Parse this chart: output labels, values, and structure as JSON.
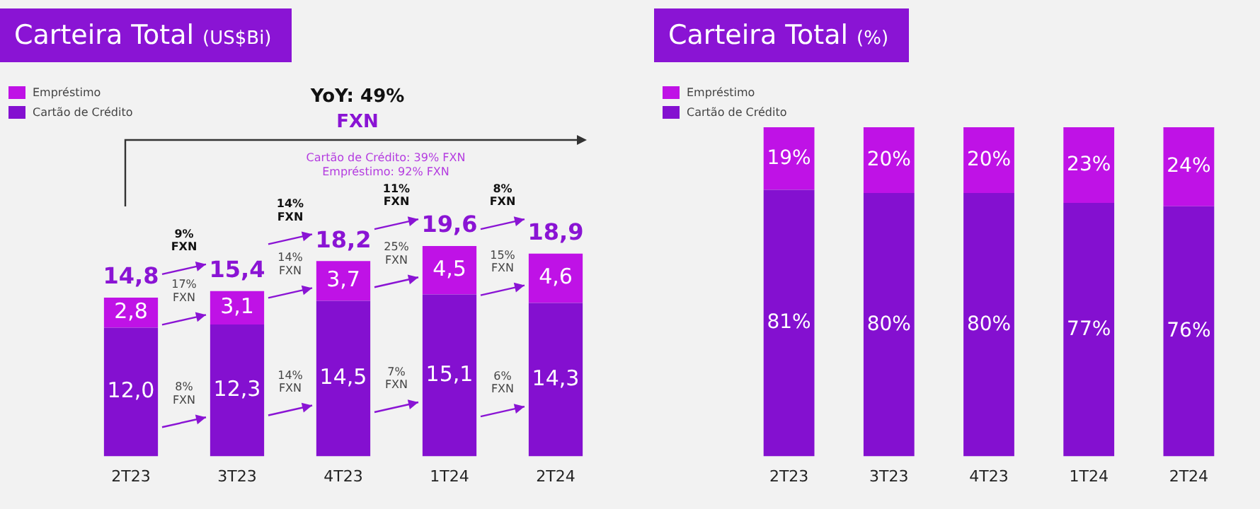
{
  "chart_data": [
    {
      "type": "bar",
      "title": "Carteira Total (US$Bi)",
      "categories": [
        "2T23",
        "3T23",
        "4T23",
        "1T24",
        "2T24"
      ],
      "stacked": true,
      "legend": "top left",
      "tick_labels": "x",
      "series": [
        {
          "name": "Cartão de Crédito",
          "color": "#8410d0",
          "values": [
            12.0,
            12.3,
            14.5,
            15.1,
            14.3
          ],
          "value_labels": [
            "12,0",
            "12,3",
            "14,5",
            "15,1",
            "14,3"
          ]
        },
        {
          "name": "Empréstimo",
          "color": "#bf12e6",
          "values": [
            2.8,
            3.1,
            3.7,
            4.5,
            4.6
          ],
          "value_labels": [
            "2,8",
            "3,1",
            "3,7",
            "4,5",
            "4,6"
          ]
        }
      ],
      "totals": [
        "14,8",
        "15,4",
        "18,2",
        "19,6",
        "18,9"
      ],
      "annotations": [
        "YoY: 49%",
        "FXN",
        "Cartão de Crédito: 39% FXN",
        "Empréstimo: 92% FXN",
        "9% FXN",
        "17% FXN",
        "8% FXN",
        "14% FXN",
        "14% FXN",
        "14% FXN",
        "11% FXN",
        "25% FXN",
        "7% FXN",
        "8% FXN",
        "15% FXN",
        "6% FXN"
      ]
    },
    {
      "type": "bar",
      "title": "Carteira Total (%)",
      "categories": [
        "2T23",
        "3T23",
        "4T23",
        "1T24",
        "2T24"
      ],
      "stacked": true,
      "legend": "top left",
      "tick_labels": "x",
      "series": [
        {
          "name": "Cartão de Crédito",
          "color": "#8410d0",
          "values": [
            81,
            80,
            80,
            77,
            76
          ],
          "value_labels": [
            "81%",
            "80%",
            "80%",
            "77%",
            "76%"
          ]
        },
        {
          "name": "Empréstimo",
          "color": "#bf12e6",
          "values": [
            19,
            20,
            20,
            23,
            24
          ],
          "value_labels": [
            "19%",
            "20%",
            "20%",
            "23%",
            "24%"
          ]
        }
      ]
    }
  ]
}
